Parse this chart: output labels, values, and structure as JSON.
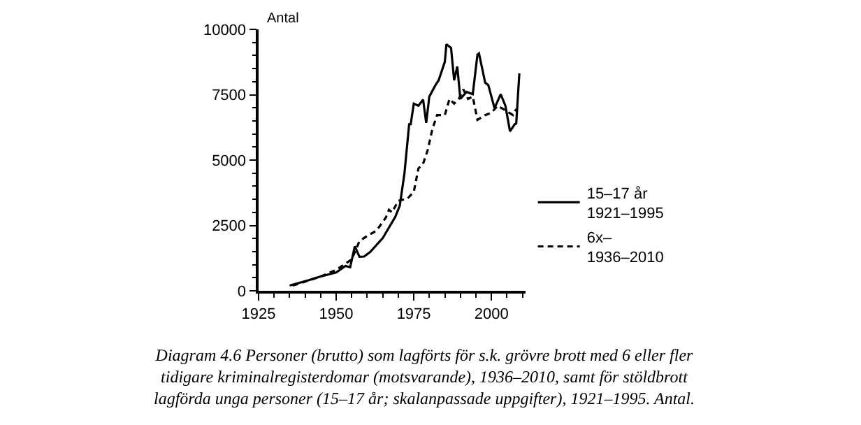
{
  "chart_data": {
    "type": "line",
    "ylabel": "Antal",
    "xlim": [
      1925,
      2011
    ],
    "xticks": [
      1925,
      1950,
      1975,
      2000
    ],
    "ylim": [
      0,
      10000
    ],
    "yticks": [
      0,
      2500,
      5000,
      7500,
      10000
    ],
    "legend": "right",
    "marker": "none",
    "series": [
      {
        "name": "15–17 år\n1921–1995",
        "color": "#000000",
        "line_style": "solid",
        "x": [
          1935,
          1938,
          1941,
          1945,
          1950,
          1953,
          1954.5,
          1956,
          1957.5,
          1959,
          1961,
          1965,
          1969,
          1970.5,
          1972,
          1973.5,
          1974,
          1975,
          1976.5,
          1978,
          1979,
          1980,
          1982,
          1983,
          1985,
          1985.5,
          1987,
          1988,
          1989,
          1990,
          1992,
          1994,
          1995.5,
          1996,
          1998,
          1999,
          2001,
          2002,
          2003,
          2004.5,
          2006,
          2007.5,
          2008,
          2009
        ],
        "values": [
          200,
          300,
          400,
          550,
          700,
          950,
          900,
          1700,
          1300,
          1310,
          1490,
          2020,
          2820,
          3260,
          4500,
          6370,
          6370,
          7160,
          7080,
          7310,
          6420,
          7430,
          7870,
          8050,
          8760,
          9430,
          9290,
          8050,
          8580,
          7340,
          7610,
          7520,
          9030,
          9080,
          7960,
          7870,
          6990,
          7250,
          7520,
          7080,
          6100,
          6370,
          6400,
          8320
        ]
      },
      {
        "name": "6x–\n1936–2010",
        "color": "#000000",
        "line_style": "dashed",
        "x": [
          1936,
          1940,
          1945,
          1950,
          1955,
          1957.5,
          1960,
          1963,
          1966,
          1967,
          1968,
          1970,
          1973,
          1975,
          1976.5,
          1978,
          1979.5,
          1981,
          1982.5,
          1985,
          1986.5,
          1988,
          1989.5,
          1991,
          1992.5,
          1994,
          1995.5,
          1998,
          2000,
          2002,
          2004.5,
          2007,
          2008
        ],
        "values": [
          200,
          350,
          550,
          800,
          1200,
          1900,
          2100,
          2300,
          2800,
          3100,
          3000,
          3440,
          3530,
          3790,
          4680,
          4860,
          5390,
          6190,
          6720,
          6720,
          7340,
          7160,
          7340,
          7700,
          7340,
          7430,
          6540,
          6720,
          6810,
          7080,
          6900,
          6720,
          6950
        ]
      }
    ],
    "annotations": [
      "Diagram 4.6 Personer (brutto) som lagförts för s.k. grövre brott med 6 eller fler\ntidigare kriminalregisterdomar (motsvarande), 1936–2010, samt för stöldbrott\nlagförda unga personer (15–17 år; skalanpassade uppgifter), 1921–1995. Antal."
    ]
  }
}
